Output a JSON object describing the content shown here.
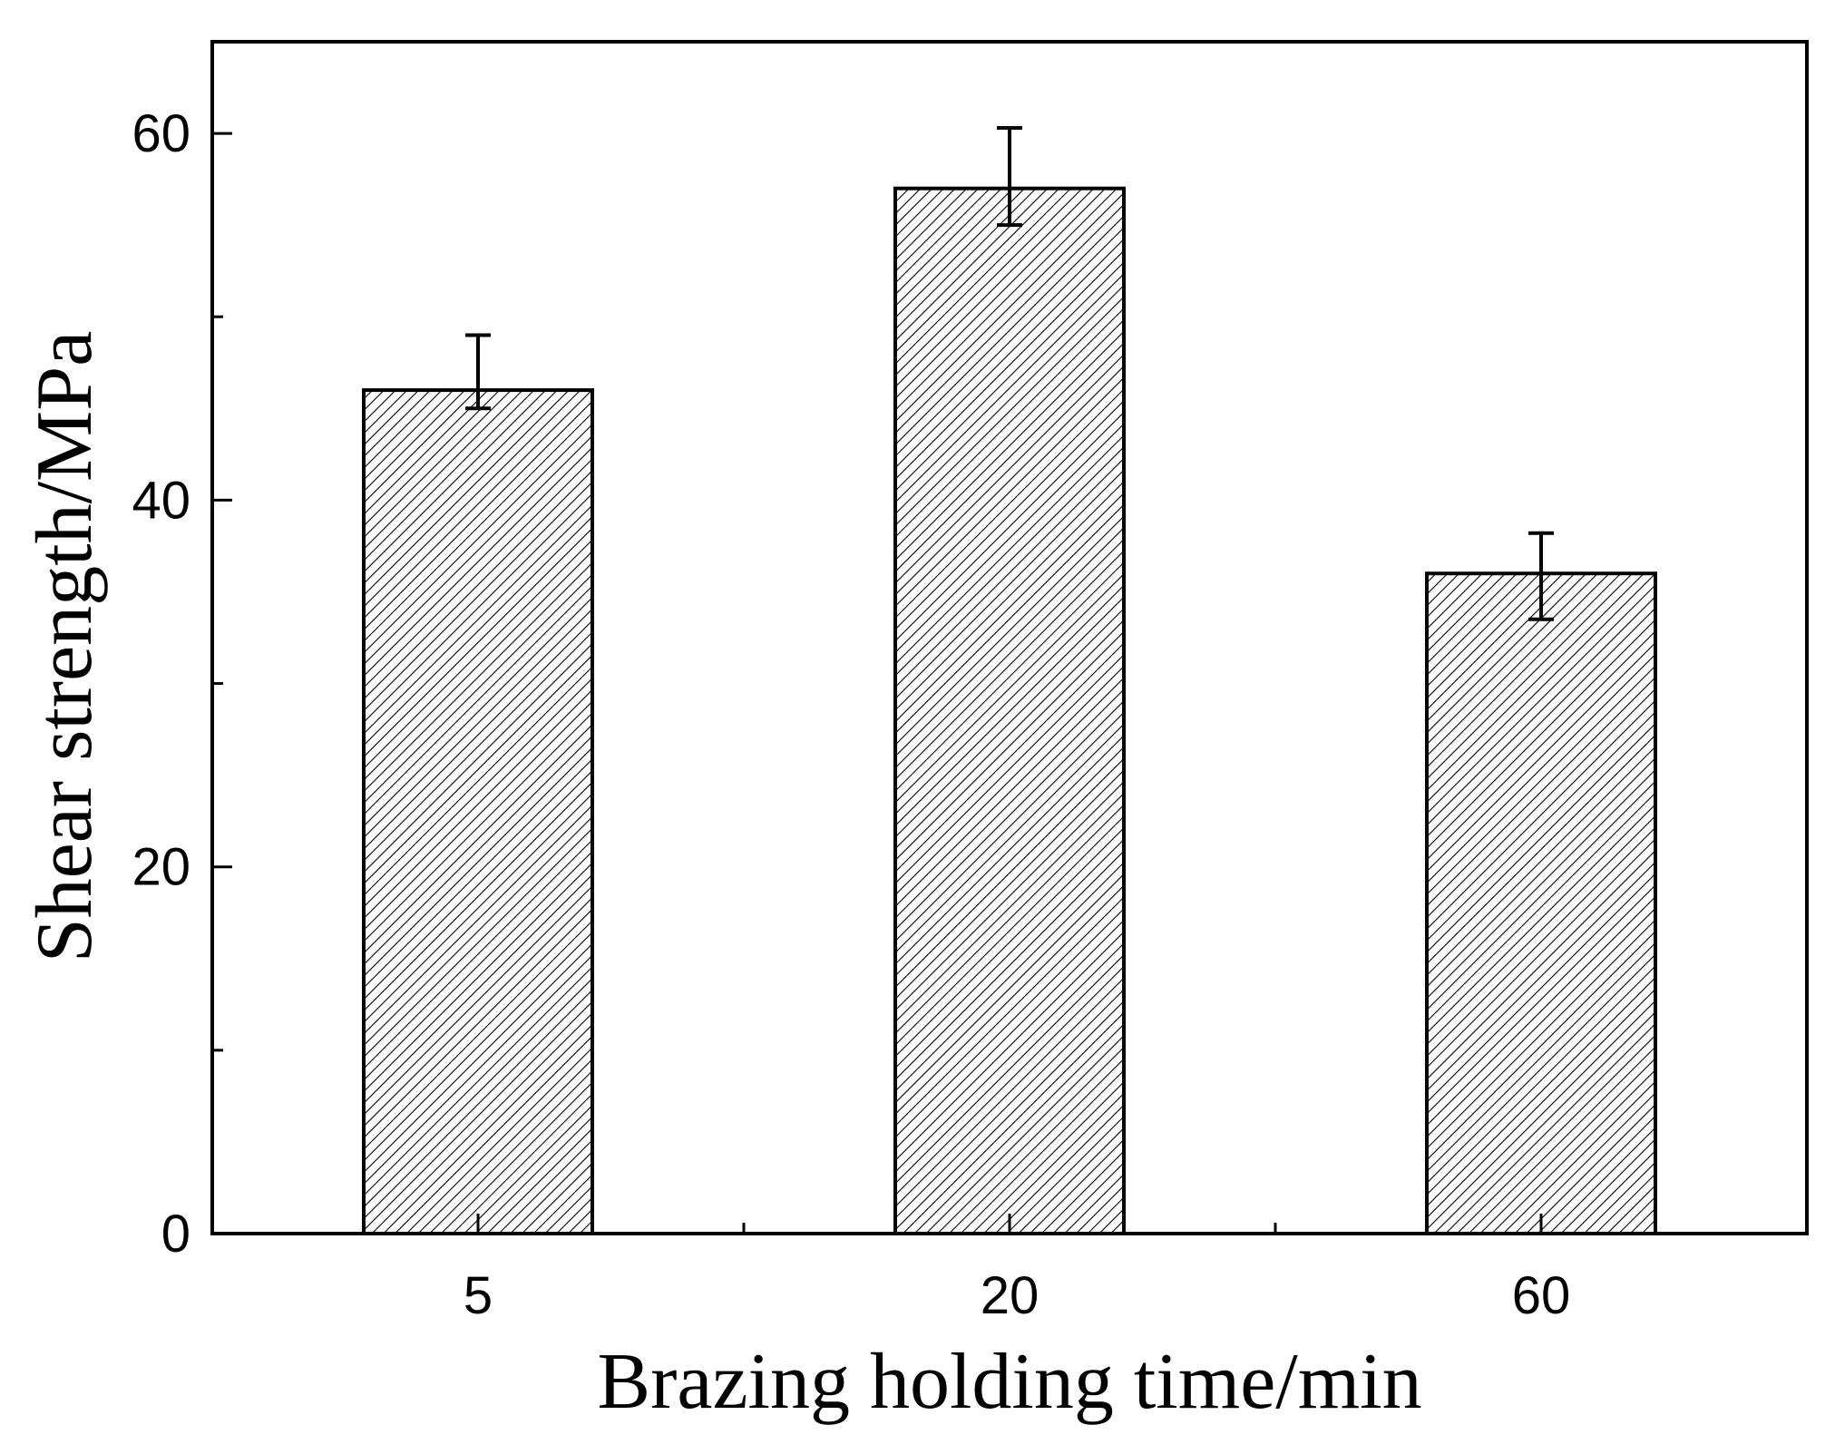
{
  "chart_data": {
    "type": "bar",
    "categories": [
      "5",
      "20",
      "60"
    ],
    "values": [
      46,
      57,
      36
    ],
    "error_low": [
      45,
      55,
      33.5
    ],
    "error_high": [
      49,
      60.3,
      38.2
    ],
    "xlabel": "Brazing holding time/min",
    "ylabel": "Shear strength/MPa",
    "ylim": [
      0,
      65
    ],
    "yticks": [
      "0",
      "20",
      "40",
      "60"
    ],
    "ytick_values": [
      0,
      20,
      40,
      60
    ],
    "minor_yticks": [
      10,
      30,
      50
    ],
    "bar_fill": "hatched",
    "grid": false,
    "colors": {
      "bar_stroke": "#000000",
      "hatch": "#000000",
      "background": "#ffffff"
    }
  }
}
